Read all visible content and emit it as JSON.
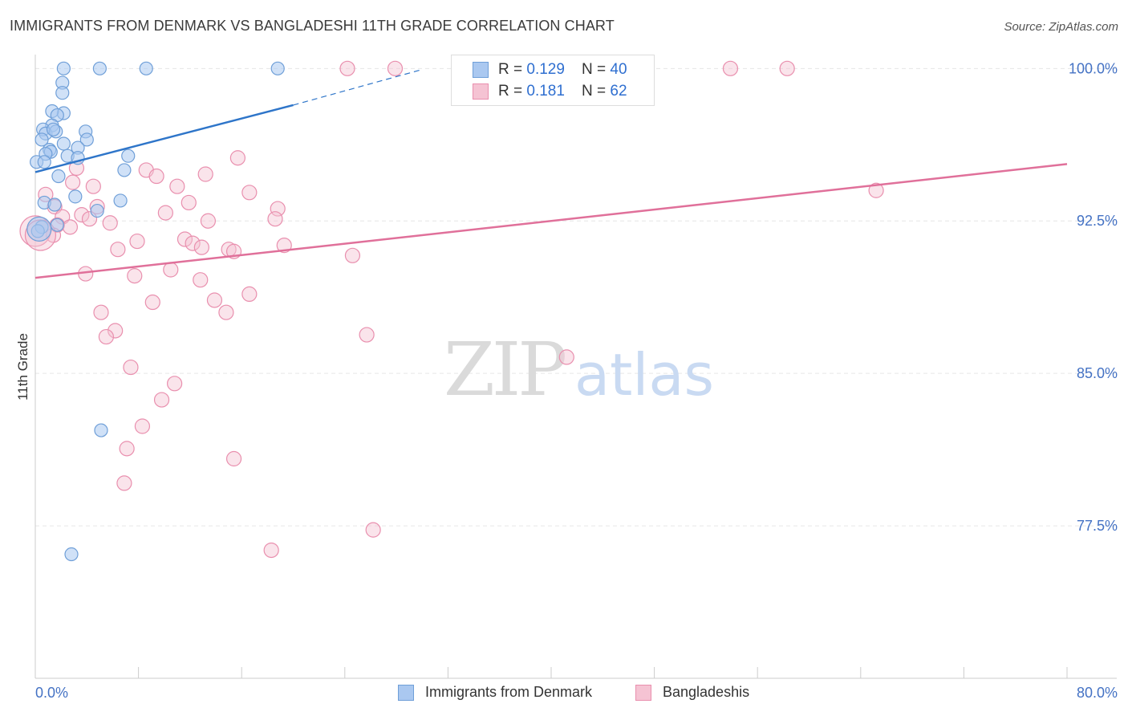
{
  "title": "IMMIGRANTS FROM DENMARK VS BANGLADESHI 11TH GRADE CORRELATION CHART",
  "source": "Source: ZipAtlas.com",
  "watermark": {
    "zip": "ZIP",
    "atlas": "atlas"
  },
  "legend": {
    "series1": {
      "r_label": "R = ",
      "r_value": "0.129",
      "n_label": "N = ",
      "n_value": "40"
    },
    "series2": {
      "r_label": "R = ",
      "r_value": "0.181",
      "n_label": "N = ",
      "n_value": "62"
    }
  },
  "colors": {
    "denmark_fill": "#aac8f0",
    "denmark_stroke": "#6f9fd8",
    "denmark_line": "#2e75c9",
    "bangla_fill": "#f5c3d3",
    "bangla_stroke": "#e98fae",
    "bangla_line": "#e0709a",
    "grid": "#e6e6e6",
    "axis_label": "#4472c4"
  },
  "chart_data": {
    "type": "scatter",
    "title": "IMMIGRANTS FROM DENMARK VS BANGLADESHI 11TH GRADE CORRELATION CHART",
    "xlabel": "",
    "ylabel": "11th Grade",
    "xlim": [
      0,
      80
    ],
    "ylim": [
      70.0,
      101.0
    ],
    "x_tick_labels": [
      "0.0%",
      "80.0%"
    ],
    "y_ticks": [
      77.5,
      85.0,
      92.5,
      100.0
    ],
    "y_tick_labels": [
      "77.5%",
      "85.0%",
      "92.5%",
      "100.0%"
    ],
    "series": [
      {
        "name": "Immigrants from Denmark",
        "R": 0.129,
        "N": 40,
        "trend": {
          "x0": 0.0,
          "y0": 94.9,
          "x1": 20.0,
          "y1": 98.2,
          "dash_to_x": 30.0,
          "dash_to_y": 99.95
        },
        "points": [
          [
            2.2,
            100.0
          ],
          [
            5.0,
            100.0
          ],
          [
            8.6,
            100.0
          ],
          [
            18.8,
            100.0
          ],
          [
            2.1,
            99.3
          ],
          [
            2.1,
            98.8
          ],
          [
            2.2,
            97.8
          ],
          [
            1.3,
            97.9
          ],
          [
            1.7,
            97.7
          ],
          [
            1.3,
            97.2
          ],
          [
            0.6,
            97.0
          ],
          [
            0.8,
            96.8
          ],
          [
            1.6,
            96.9
          ],
          [
            1.4,
            97.0
          ],
          [
            3.9,
            96.9
          ],
          [
            0.5,
            96.5
          ],
          [
            2.2,
            96.3
          ],
          [
            4.0,
            96.5
          ],
          [
            3.3,
            96.1
          ],
          [
            1.1,
            96.0
          ],
          [
            1.2,
            95.9
          ],
          [
            0.8,
            95.8
          ],
          [
            2.5,
            95.7
          ],
          [
            3.3,
            95.6
          ],
          [
            7.2,
            95.7
          ],
          [
            0.1,
            95.4
          ],
          [
            0.7,
            95.4
          ],
          [
            6.9,
            95.0
          ],
          [
            1.8,
            94.7
          ],
          [
            3.1,
            93.7
          ],
          [
            0.7,
            93.4
          ],
          [
            1.5,
            93.3
          ],
          [
            6.6,
            93.5
          ],
          [
            4.8,
            93.0
          ],
          [
            1.7,
            92.3
          ],
          [
            0.5,
            92.2
          ],
          [
            0.2,
            92.0
          ],
          [
            5.1,
            82.2
          ],
          [
            2.8,
            76.1
          ],
          [
            0.3,
            92.1
          ]
        ]
      },
      {
        "name": "Bangladeshis",
        "R": 0.181,
        "N": 62,
        "trend": {
          "x0": 0.0,
          "y0": 89.7,
          "x1": 80.0,
          "y1": 95.3
        },
        "points": [
          [
            24.2,
            100.0
          ],
          [
            27.9,
            100.0
          ],
          [
            53.9,
            100.0
          ],
          [
            58.3,
            100.0
          ],
          [
            15.7,
            95.6
          ],
          [
            3.2,
            95.1
          ],
          [
            8.6,
            95.0
          ],
          [
            9.4,
            94.7
          ],
          [
            13.2,
            94.8
          ],
          [
            2.9,
            94.4
          ],
          [
            11.0,
            94.2
          ],
          [
            4.5,
            94.2
          ],
          [
            16.6,
            93.9
          ],
          [
            0.8,
            93.8
          ],
          [
            11.9,
            93.4
          ],
          [
            1.5,
            93.2
          ],
          [
            4.8,
            93.2
          ],
          [
            18.8,
            93.1
          ],
          [
            10.1,
            92.9
          ],
          [
            3.6,
            92.8
          ],
          [
            2.1,
            92.7
          ],
          [
            4.2,
            92.6
          ],
          [
            18.6,
            92.6
          ],
          [
            13.4,
            92.5
          ],
          [
            5.8,
            92.4
          ],
          [
            1.7,
            92.3
          ],
          [
            2.7,
            92.2
          ],
          [
            1.4,
            91.8
          ],
          [
            7.9,
            91.5
          ],
          [
            11.6,
            91.6
          ],
          [
            12.2,
            91.4
          ],
          [
            12.9,
            91.2
          ],
          [
            19.3,
            91.3
          ],
          [
            15.0,
            91.1
          ],
          [
            6.4,
            91.1
          ],
          [
            15.4,
            91.0
          ],
          [
            24.6,
            90.8
          ],
          [
            10.5,
            90.1
          ],
          [
            3.9,
            89.9
          ],
          [
            7.7,
            89.8
          ],
          [
            12.8,
            89.6
          ],
          [
            16.6,
            88.9
          ],
          [
            13.9,
            88.6
          ],
          [
            9.1,
            88.5
          ],
          [
            14.8,
            88.0
          ],
          [
            5.1,
            88.0
          ],
          [
            6.2,
            87.1
          ],
          [
            5.5,
            86.8
          ],
          [
            25.7,
            86.9
          ],
          [
            41.2,
            85.8
          ],
          [
            7.4,
            85.3
          ],
          [
            10.8,
            84.5
          ],
          [
            9.8,
            83.7
          ],
          [
            8.3,
            82.4
          ],
          [
            7.1,
            81.3
          ],
          [
            15.4,
            80.8
          ],
          [
            6.9,
            79.6
          ],
          [
            26.2,
            77.3
          ],
          [
            18.3,
            76.3
          ],
          [
            65.2,
            94.0
          ],
          [
            0.0,
            92.0
          ],
          [
            0.4,
            91.8
          ]
        ]
      }
    ]
  }
}
